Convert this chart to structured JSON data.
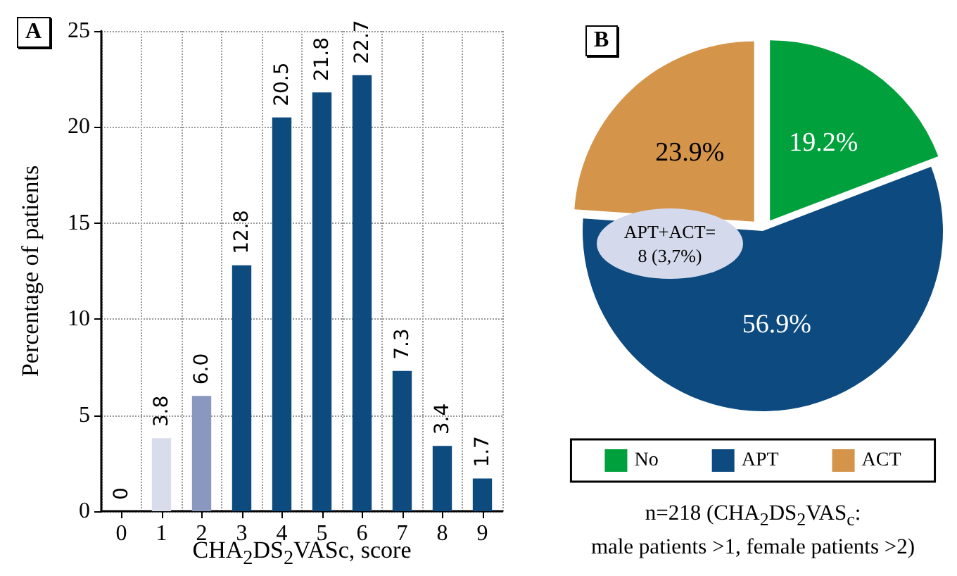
{
  "chart_data": [
    {
      "type": "bar",
      "title": "A",
      "xlabel": "CHA$_{2}$DS$_{2}$VASc, score",
      "ylabel": "Percentage of patients",
      "categories": [
        "0",
        "1",
        "2",
        "3",
        "4",
        "5",
        "6",
        "7",
        "8",
        "9"
      ],
      "values": [
        0,
        3.8,
        6.0,
        12.8,
        20.5,
        21.8,
        22.7,
        7.3,
        3.4,
        1.7
      ],
      "value_labels": [
        "0",
        "3.8",
        "6.0",
        "12.8",
        "20.5",
        "21.8",
        "22.7",
        "7.3",
        "3.4",
        "1.7"
      ],
      "colors": [
        "#0d4a7e",
        "#d9dceb",
        "#8a97bf",
        "#0d4a7e",
        "#0d4a7e",
        "#0d4a7e",
        "#0d4a7e",
        "#0d4a7e",
        "#0d4a7e",
        "#0d4a7e"
      ],
      "ylim": [
        0,
        25
      ],
      "yticks": [
        0,
        5,
        10,
        15,
        20,
        25
      ],
      "grid": true
    },
    {
      "type": "pie",
      "title": "B",
      "categories": [
        "No",
        "APT",
        "ACT"
      ],
      "values": [
        19.2,
        56.9,
        23.9
      ],
      "value_labels": [
        "19.2%",
        "56.9%",
        "23.9%"
      ],
      "colors": [
        "#00a03c",
        "#0d4a80",
        "#d4944a"
      ],
      "legend": "bottom",
      "annotations": [
        "APT+ACT=\n8 (3,7%)",
        "n=218 (CHA$_{2}$DS$_{2}$VAS$_{c}$:\nmale patients >1, female patients >2)"
      ]
    }
  ]
}
